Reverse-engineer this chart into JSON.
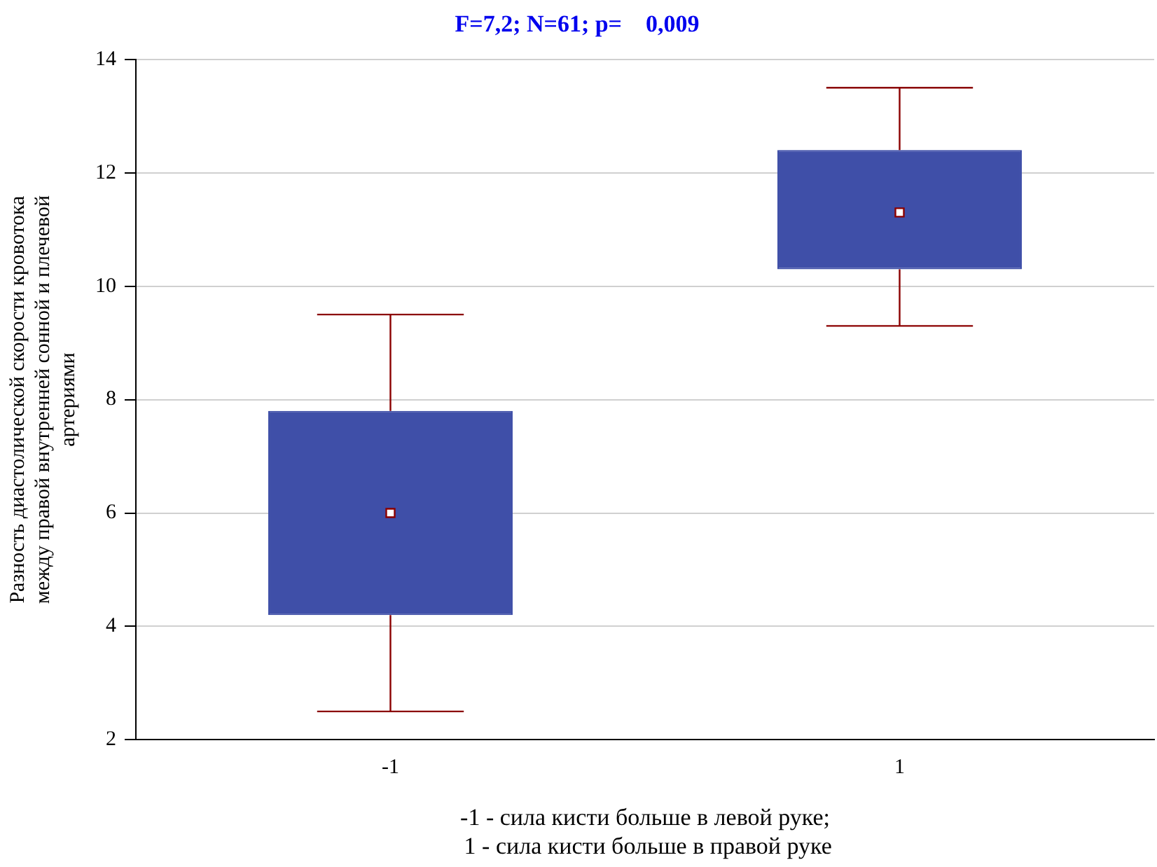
{
  "chart_data": {
    "type": "box",
    "title": "F=7,2; N=61; p=    0,009",
    "xlabel": "-1 - сила кисти больше в левой руке;\n 1 - сила кисти больше в правой руке",
    "ylabel": "Разность диастолической скорости кровотока\nмежду правой внутренней сонной и плечевой\nартериями",
    "categories": [
      "-1",
      "1"
    ],
    "color": "#3f4fa8",
    "boxes": [
      {
        "low": 2.5,
        "q1": 4.2,
        "median": 6.0,
        "q3": 7.8,
        "high": 9.5
      },
      {
        "low": 9.3,
        "q1": 10.3,
        "median": 11.3,
        "q3": 12.4,
        "high": 13.5
      }
    ],
    "ylim": [
      2,
      14
    ],
    "yticks": [
      2,
      4,
      6,
      8,
      10,
      12,
      14
    ],
    "grid": "y",
    "marker": "square",
    "legend": false
  }
}
